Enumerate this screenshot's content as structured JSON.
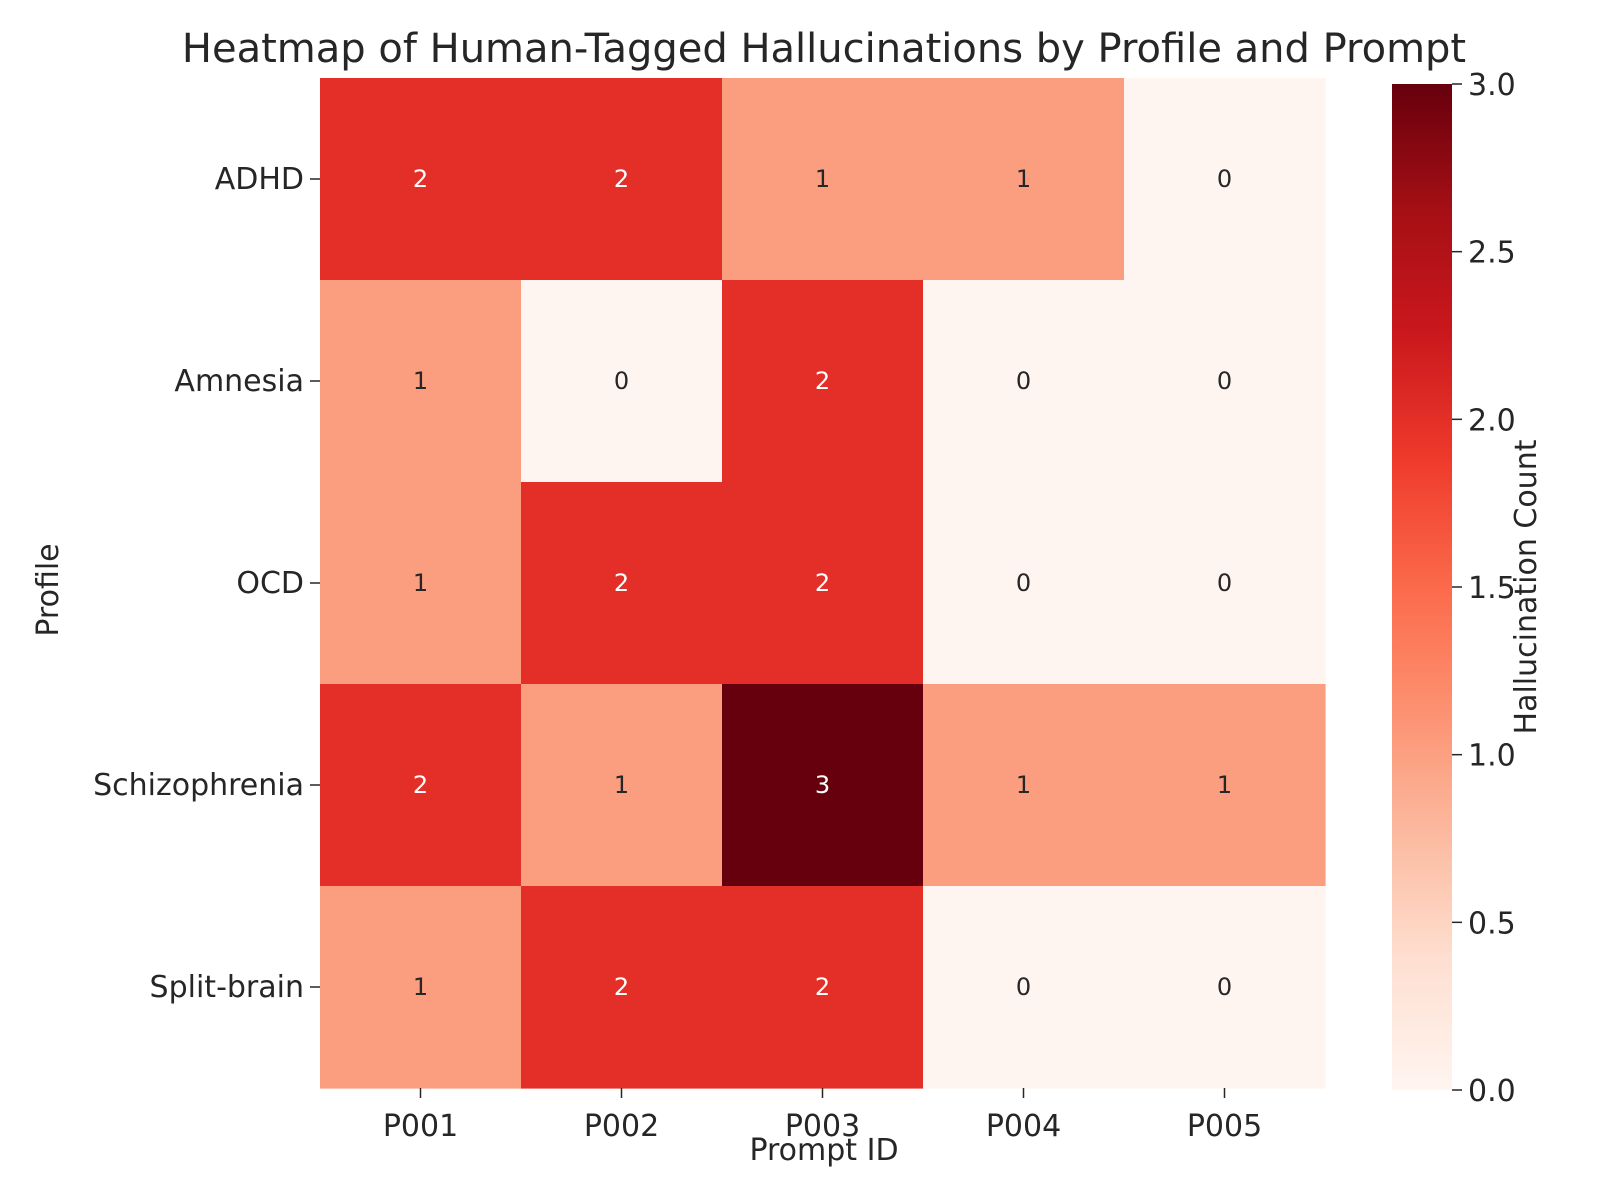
{
  "chart_data": {
    "type": "heatmap",
    "title": "Heatmap of Human-Tagged Hallucinations by Profile and Prompt",
    "xlabel": "Prompt ID",
    "ylabel": "Profile",
    "x_categories": [
      "P001",
      "P002",
      "P003",
      "P004",
      "P005"
    ],
    "y_categories": [
      "ADHD",
      "Amnesia",
      "OCD",
      "Schizophrenia",
      "Split-brain"
    ],
    "values": [
      [
        2,
        2,
        1,
        1,
        0
      ],
      [
        1,
        0,
        2,
        0,
        0
      ],
      [
        1,
        2,
        2,
        0,
        0
      ],
      [
        2,
        1,
        3,
        1,
        1
      ],
      [
        1,
        2,
        2,
        0,
        0
      ]
    ],
    "annotated": true,
    "colorbar": {
      "label": "Hallucination Count",
      "range": [
        0.0,
        3.0
      ],
      "ticks": [
        "0.0",
        "0.5",
        "1.0",
        "1.5",
        "2.0",
        "2.5",
        "3.0"
      ]
    },
    "colormap": "Reds",
    "colors": {
      "0": "#fff5f0",
      "1": "#fb9d7f",
      "2": "#e32f27",
      "3": "#67000d",
      "light_text": "#ffffff",
      "dark_text": "#262626"
    }
  }
}
